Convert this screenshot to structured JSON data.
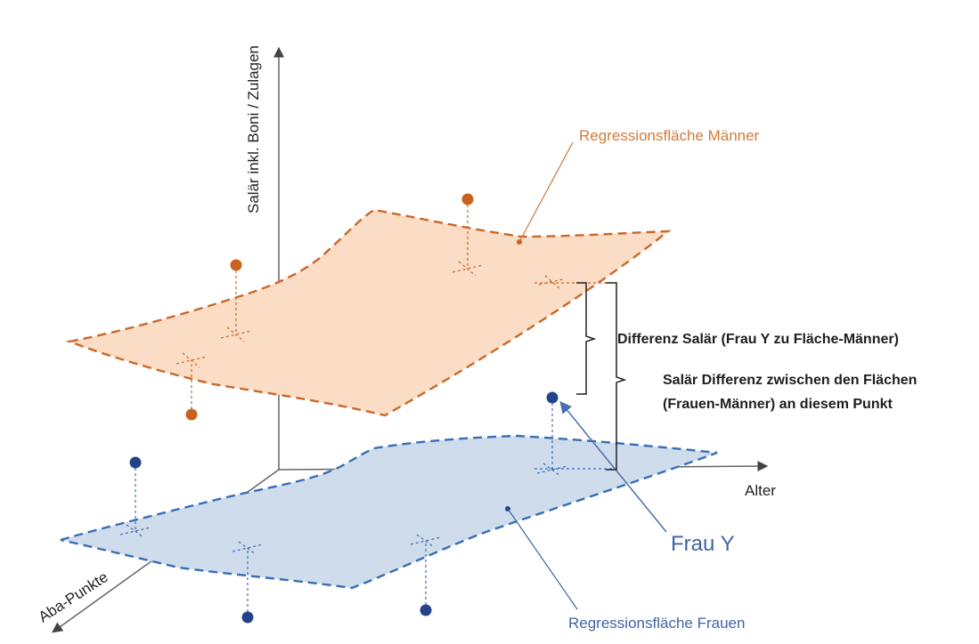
{
  "axes": {
    "y_label": "Salär inkl. Boni / Zulagen",
    "x_label": "Alter",
    "z_label": "Aba-Punkte"
  },
  "surfaces": {
    "men_label": "Regressionsfläche Männer",
    "women_label": "Regressionsfläche Frauen"
  },
  "annotations": {
    "diff_individual": "Differenz Salär (Frau Y zu Fläche-Männer)",
    "diff_surfaces_line1": "Salär Differenz zwischen den Flächen",
    "diff_surfaces_line2": "(Frauen-Männer) an diesem Punkt",
    "frau_y": "Frau Y"
  },
  "colors": {
    "men_fill": "#fbdcc4",
    "men_stroke": "#c9682a",
    "men_point": "#c9621f",
    "women_fill": "#cfdcec",
    "women_stroke": "#3a6db5",
    "women_point": "#23448a",
    "axis": "#555555"
  }
}
